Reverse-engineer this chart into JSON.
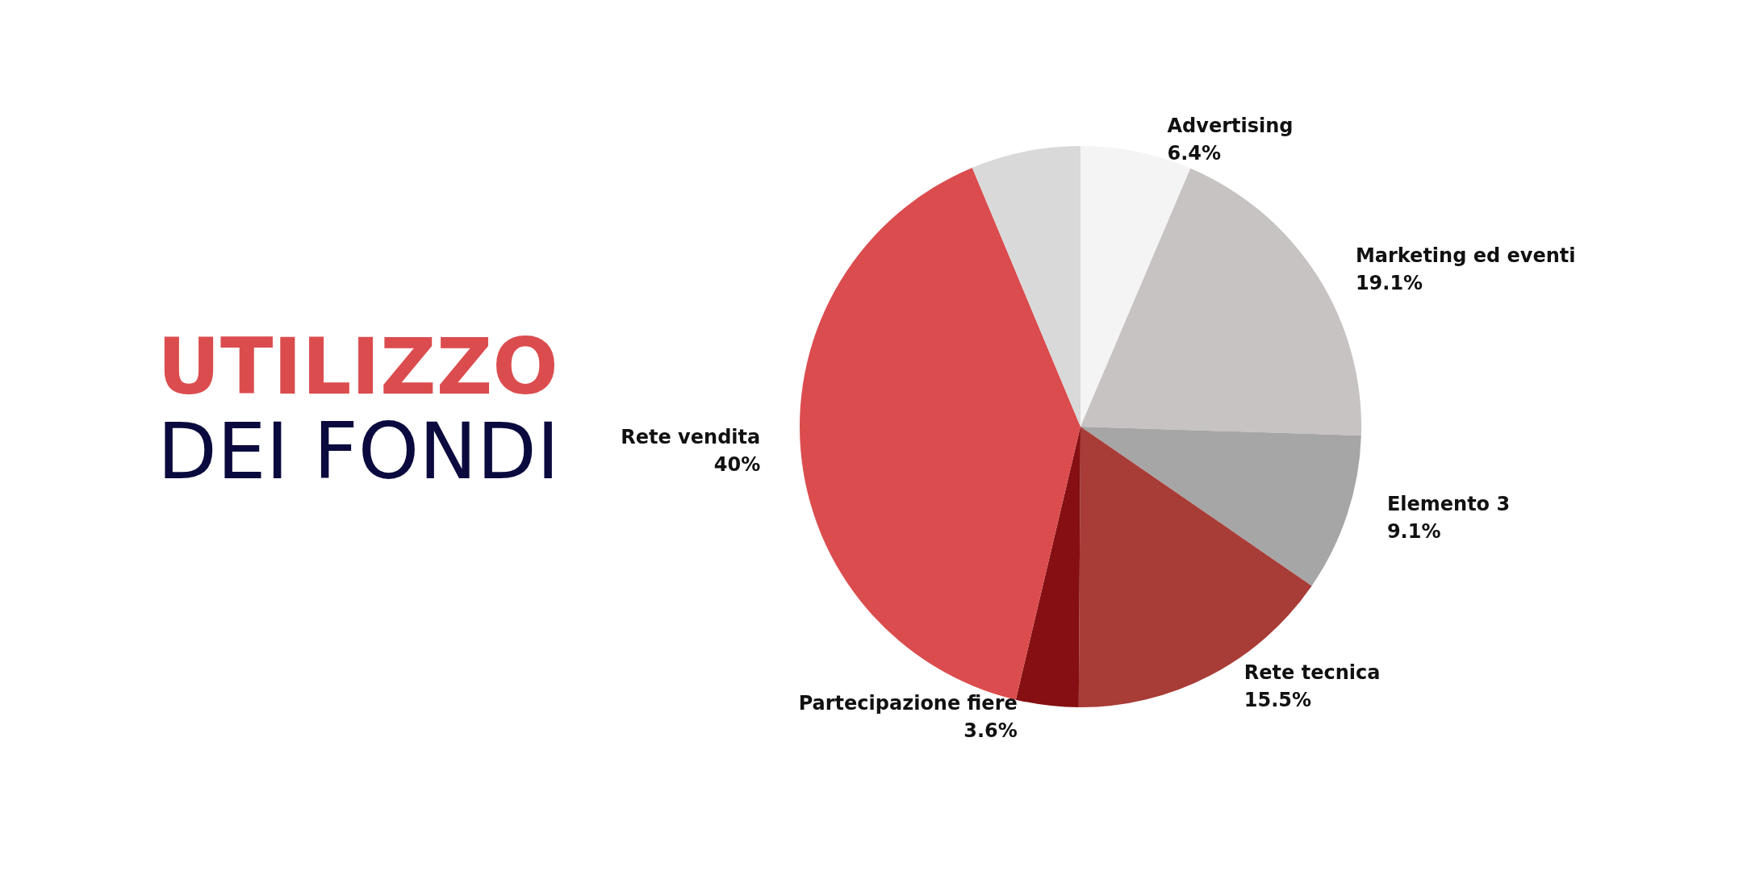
{
  "chart_data": {
    "type": "pie",
    "title": "UTILIZZO",
    "subtitle": "DEI FONDI",
    "categories": [
      "Advertising",
      "Marketing ed eventi",
      "Elemento 3",
      "Rete tecnica",
      "Partecipazione fiere",
      "Rete vendita",
      null
    ],
    "values": [
      6.4,
      19.1,
      9.1,
      15.5,
      3.6,
      40,
      6.3
    ],
    "colors": [
      "#f4f4f4",
      "#c7c3c2",
      "#a6a6a6",
      "#a83c37",
      "#850f12",
      "#db4c4e",
      "#d9d9d9"
    ],
    "value_labels": [
      "6.4%",
      "19.1%",
      "9.1%",
      "15.5%",
      "3.6%",
      "40%",
      null
    ]
  }
}
